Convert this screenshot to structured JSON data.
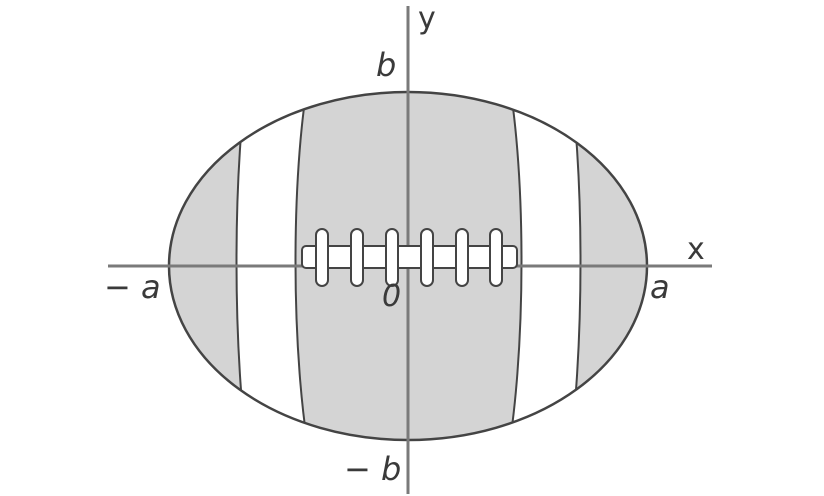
{
  "diagram": {
    "labels": {
      "y_axis": "y",
      "x_axis": "x",
      "b_top": "b",
      "b_bottom": "− b",
      "a_left": "− a",
      "a_right": "a",
      "origin": "0"
    },
    "colors": {
      "ball_fill": "#d4d4d4",
      "stripe_fill": "#ffffff",
      "outline": "#444444",
      "axis": "#7a7a7a",
      "lace_fill": "#ffffff"
    }
  }
}
